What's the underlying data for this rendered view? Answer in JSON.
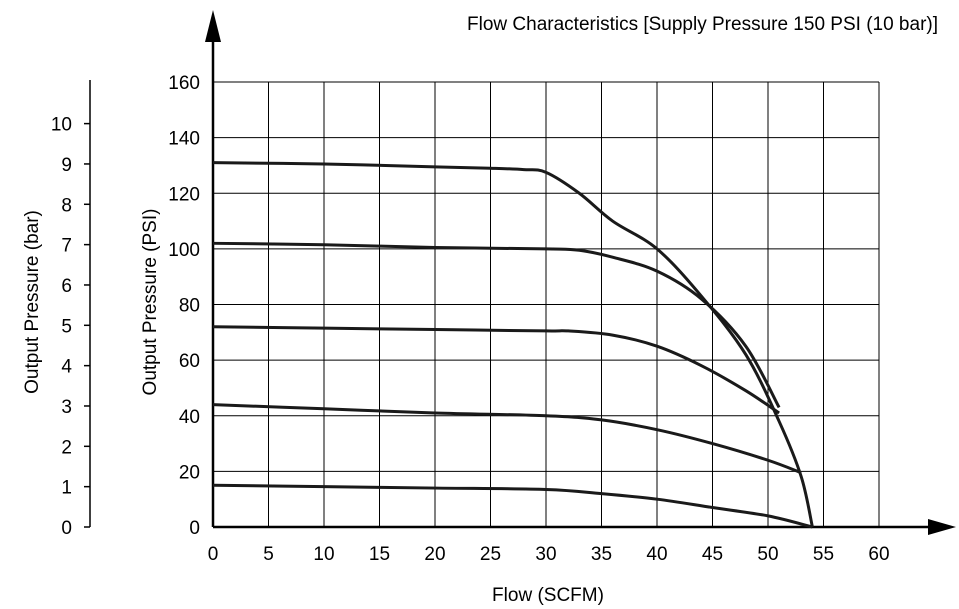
{
  "chart_data": {
    "type": "line",
    "title": "Flow Characteristics [Supply Pressure 150 PSI (10 bar)]",
    "xlabel": "Flow (SCFM)",
    "ylabel": "Output Pressure (PSI)",
    "y2label": "Output Pressure (bar)",
    "xlim": [
      0,
      60
    ],
    "ylim": [
      0,
      160
    ],
    "y2lim": [
      0,
      10
    ],
    "xticks": [
      "0",
      "5",
      "10",
      "15",
      "20",
      "25",
      "30",
      "35",
      "40",
      "45",
      "50",
      "55",
      "60"
    ],
    "yticks": [
      "0",
      "20",
      "40",
      "60",
      "80",
      "100",
      "120",
      "140",
      "160"
    ],
    "y2ticks": [
      "0",
      "1",
      "2",
      "3",
      "4",
      "5",
      "6",
      "7",
      "8",
      "9",
      "10"
    ],
    "grid": true,
    "series": [
      {
        "x": [
          0,
          10,
          20,
          25,
          28,
          30,
          33,
          36,
          40,
          44,
          48,
          51,
          53,
          54
        ],
        "y": [
          131,
          130.5,
          129.5,
          129,
          128.5,
          127.5,
          120,
          110,
          100,
          83,
          62,
          38,
          18,
          0
        ]
      },
      {
        "x": [
          0,
          10,
          20,
          30,
          33,
          36,
          40,
          44,
          48,
          51
        ],
        "y": [
          102,
          101.5,
          100.5,
          100,
          99.5,
          97,
          92,
          82,
          65,
          43
        ]
      },
      {
        "x": [
          0,
          10,
          20,
          30,
          32,
          36,
          40,
          44,
          48,
          51
        ],
        "y": [
          72,
          71.5,
          71,
          70.5,
          70.5,
          69,
          65,
          58,
          49,
          41
        ]
      },
      {
        "x": [
          0,
          10,
          20,
          30,
          35,
          40,
          45,
          50,
          53
        ],
        "y": [
          44,
          42.5,
          41,
          40,
          38.5,
          35,
          30,
          24,
          19.5
        ]
      },
      {
        "x": [
          0,
          10,
          20,
          30,
          35,
          40,
          45,
          50,
          54
        ],
        "y": [
          15,
          14.5,
          14,
          13.5,
          12,
          10,
          7,
          4,
          0
        ]
      }
    ]
  }
}
